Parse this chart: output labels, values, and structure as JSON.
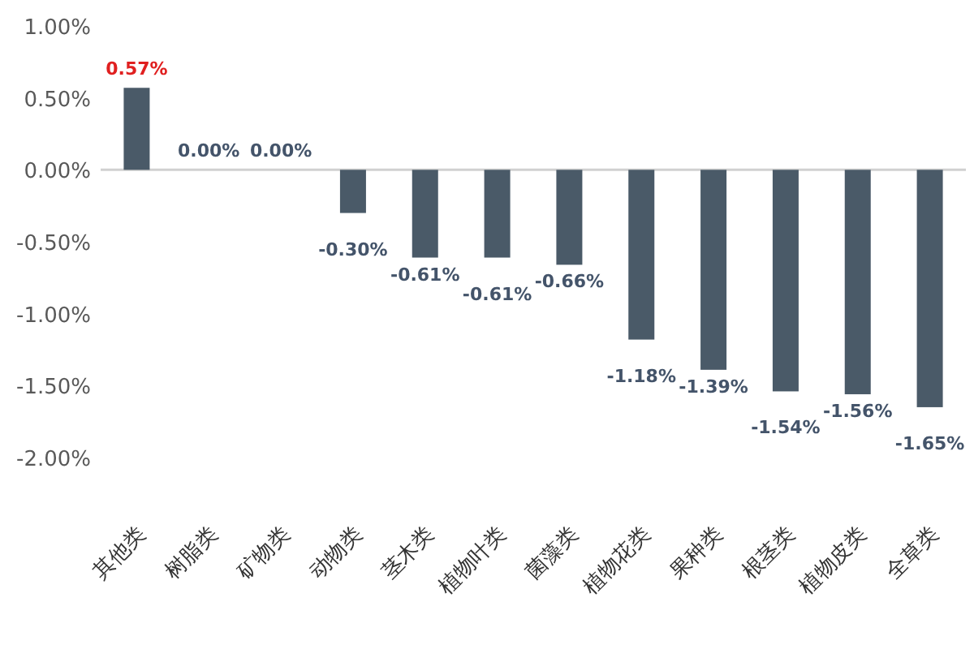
{
  "chart_data": {
    "type": "bar",
    "categories": [
      "其他类",
      "树脂类",
      "矿物类",
      "动物类",
      "茎木类",
      "植物叶类",
      "菌藻类",
      "植物花类",
      "果种类",
      "根茎类",
      "植物皮类",
      "全草类"
    ],
    "values": [
      0.57,
      0.0,
      0.0,
      -0.3,
      -0.61,
      -0.61,
      -0.66,
      -1.18,
      -1.39,
      -1.54,
      -1.56,
      -1.65
    ],
    "color": "#4a5a68",
    "ylim": [
      -2,
      1
    ],
    "yticks": [
      {
        "value": 1,
        "label": "1.00%"
      },
      {
        "value": 0.5,
        "label": "0.50%"
      },
      {
        "value": 0,
        "label": "0.00%"
      },
      {
        "value": -0.5,
        "label": "-0.50%"
      },
      {
        "value": -1,
        "label": "-1.00%"
      },
      {
        "value": -1.5,
        "label": "-1.50%"
      },
      {
        "value": -2,
        "label": "-2.00%"
      }
    ],
    "value_labels": [
      "0.57%",
      "0.00%",
      "0.00%",
      "-0.30%",
      "-0.61%",
      "-0.61%",
      "-0.66%",
      "-1.18%",
      "-1.39%",
      "-1.54%",
      "-1.56%",
      "-1.65%"
    ]
  }
}
